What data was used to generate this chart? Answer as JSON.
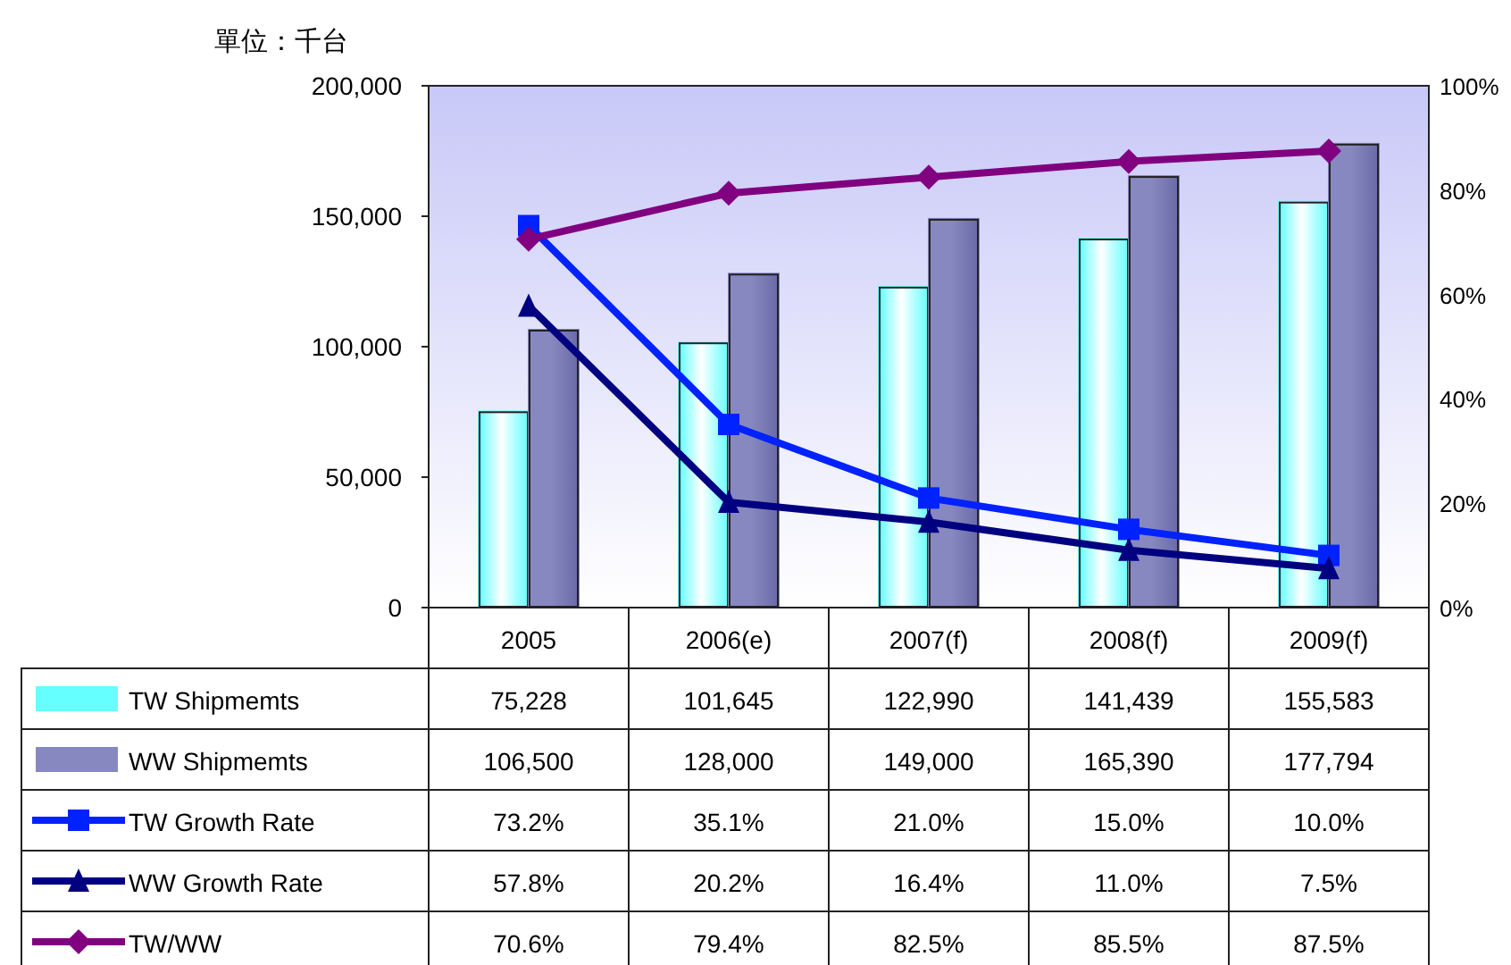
{
  "chart_data": {
    "type": "bar",
    "ylabel": "單位：千台",
    "categories": [
      "2005",
      "2006(e)",
      "2007(f)",
      "2008(f)",
      "2009(f)"
    ],
    "series": [
      {
        "name": "TW Shipmemts",
        "color": "#66ffff",
        "values": [
          75228,
          101645,
          122990,
          141439,
          155583
        ],
        "value_labels": [
          "75,228",
          "101,645",
          "122,990",
          "141,439",
          "155,583"
        ]
      },
      {
        "name": "WW Shipmemts",
        "color": "#8888c0",
        "values": [
          106500,
          128000,
          149000,
          165390,
          177794
        ],
        "value_labels": [
          "106,500",
          "128,000",
          "149,000",
          "165,390",
          "177,794"
        ]
      },
      {
        "name": "TW Growth Rate",
        "type": "line",
        "axis": "y2",
        "marker": "square",
        "color": "#0022ff",
        "values": [
          73.2,
          35.1,
          21.0,
          15.0,
          10.0
        ],
        "value_labels": [
          "73.2%",
          "35.1%",
          "21.0%",
          "15.0%",
          "10.0%"
        ]
      },
      {
        "name": "WW Growth Rate",
        "type": "line",
        "axis": "y2",
        "marker": "triangle",
        "color": "#000080",
        "values": [
          57.8,
          20.2,
          16.4,
          11.0,
          7.5
        ],
        "value_labels": [
          "57.8%",
          "20.2%",
          "16.4%",
          "11.0%",
          "7.5%"
        ]
      },
      {
        "name": "TW/WW",
        "type": "line",
        "axis": "y2",
        "marker": "diamond",
        "color": "#800080",
        "values": [
          70.6,
          79.4,
          82.5,
          85.5,
          87.5
        ],
        "value_labels": [
          "70.6%",
          "79.4%",
          "82.5%",
          "85.5%",
          "87.5%"
        ]
      }
    ],
    "ylim": [
      0,
      200000
    ],
    "yticks": [
      {
        "value": 0,
        "label": "0"
      },
      {
        "value": 50000,
        "label": "50,000"
      },
      {
        "value": 100000,
        "label": "100,000"
      },
      {
        "value": 150000,
        "label": "150,000"
      },
      {
        "value": 200000,
        "label": "200,000"
      }
    ],
    "y2lim": [
      0,
      100
    ],
    "y2ticks": [
      {
        "value": 0,
        "label": "0%"
      },
      {
        "value": 20,
        "label": "20%"
      },
      {
        "value": 40,
        "label": "40%"
      },
      {
        "value": 60,
        "label": "60%"
      },
      {
        "value": 80,
        "label": "80%"
      },
      {
        "value": 100,
        "label": "100%"
      }
    ],
    "legend": "bottom",
    "grid": false
  }
}
